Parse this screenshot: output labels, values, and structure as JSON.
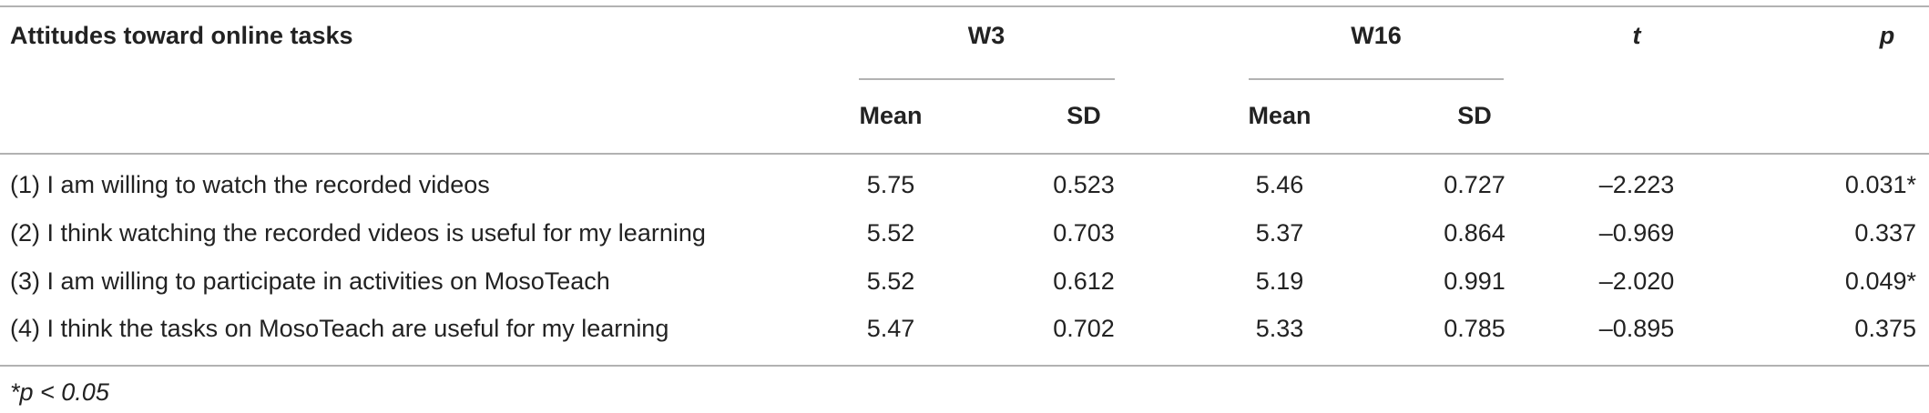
{
  "table": {
    "header": {
      "title": "Attitudes toward online tasks",
      "groups": [
        "W3",
        "W16"
      ],
      "t": "t",
      "p": "p",
      "sub": [
        "Mean",
        "SD",
        "Mean",
        "SD"
      ]
    },
    "rows": [
      [
        "(1) I am willing to watch the recorded videos",
        "5.75",
        "0.523",
        "5.46",
        "0.727",
        "–2.223",
        "0.031*"
      ],
      [
        "(2) I think watching the recorded videos is useful for my learning",
        "5.52",
        "0.703",
        "5.37",
        "0.864",
        "–0.969",
        "0.337"
      ],
      [
        "(3) I am willing to participate in activities on MosoTeach",
        "5.52",
        "0.612",
        "5.19",
        "0.991",
        "–2.020",
        "0.049*"
      ],
      [
        "(4) I think the tasks on MosoTeach are useful for my learning",
        "5.47",
        "0.702",
        "5.33",
        "0.785",
        "–0.895",
        "0.375"
      ]
    ],
    "footnote": "*p < 0.05"
  }
}
